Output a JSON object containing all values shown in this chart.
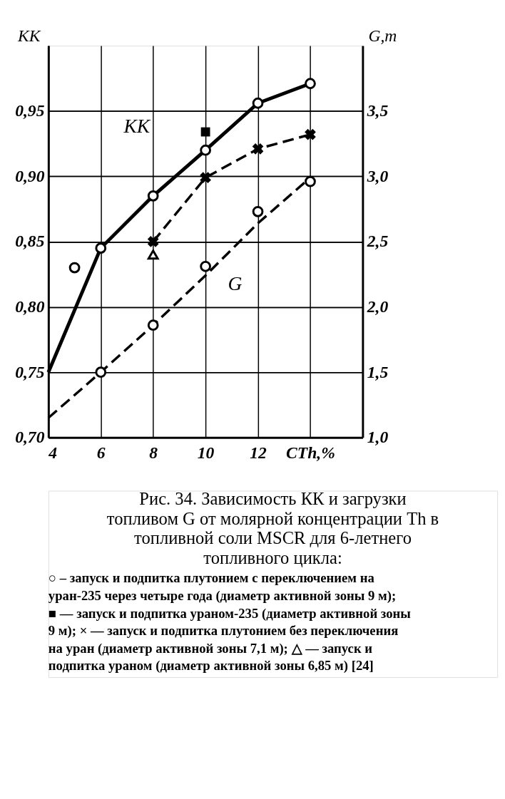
{
  "chart_data": {
    "type": "line",
    "title": "Рис. 34. Зависимость КК и загрузки топливом G от молярной концентрации Th в топливной соли MSCR для 6-летнего топливного цикла:",
    "ylabel": "KK",
    "y2label": "G,т",
    "xlim": [
      4,
      16
    ],
    "xticks": [
      4,
      6,
      8,
      10,
      12,
      {
        "value": 14,
        "label": "CTh,%"
      }
    ],
    "ylim": [
      0.7,
      1.0
    ],
    "yticks": [
      {
        "value": 0.7,
        "label": "0,70"
      },
      {
        "value": 0.75,
        "label": "0,75"
      },
      {
        "value": 0.8,
        "label": "0,80"
      },
      {
        "value": 0.85,
        "label": "0,85"
      },
      {
        "value": 0.9,
        "label": "0,90"
      },
      {
        "value": 0.95,
        "label": "0,95"
      }
    ],
    "y2lim": [
      1.0,
      4.0
    ],
    "y2ticks": [
      {
        "value": 1.0,
        "label": "1,0"
      },
      {
        "value": 1.5,
        "label": "1,5"
      },
      {
        "value": 2.0,
        "label": "2,0"
      },
      {
        "value": 2.5,
        "label": "2,5"
      },
      {
        "value": 3.0,
        "label": "3,0"
      },
      {
        "value": 3.5,
        "label": "3,5"
      }
    ],
    "grid": true,
    "series": [
      {
        "color": "#000000",
        "x": [
          4,
          6,
          8,
          10,
          12,
          14
        ],
        "values": [
          0.75,
          0.845,
          0.885,
          0.92,
          0.956,
          0.971
        ],
        "line_style": "solid",
        "marker": "none"
      },
      {
        "type": "scatter",
        "color": "#000000",
        "x": [
          5,
          6,
          8,
          10,
          12,
          14
        ],
        "values": [
          0.83,
          0.845,
          0.885,
          0.92,
          0.956,
          0.971
        ],
        "marker": "circle"
      },
      {
        "type": "scatter",
        "color": "#000000",
        "x": [
          10
        ],
        "values": [
          0.934
        ],
        "marker": "square"
      },
      {
        "color": "#000000",
        "x": [
          8,
          10,
          12,
          14
        ],
        "values": [
          0.85,
          0.899,
          0.921,
          0.932
        ],
        "line_style": "dashed",
        "marker": "cross"
      },
      {
        "type": "scatter",
        "color": "#000000",
        "x": [
          8
        ],
        "values": [
          0.84
        ],
        "marker": "triangle"
      },
      {
        "color": "#000000",
        "axis": "y2",
        "x": [
          4,
          6,
          8,
          10,
          12,
          14
        ],
        "values": [
          1.15,
          1.5,
          1.86,
          2.24,
          2.64,
          2.99
        ],
        "line_style": "dashed",
        "marker": "none"
      },
      {
        "type": "scatter",
        "color": "#000000",
        "axis": "y2",
        "x": [
          6,
          8,
          10,
          12,
          14
        ],
        "values": [
          1.5,
          1.86,
          2.31,
          2.73,
          2.96
        ],
        "marker": "circle"
      }
    ],
    "annotations": [
      "KK",
      "G",
      "○ – запуск и подпитка плутонием с переключением на уран-235 через четыре года (диаметр активной зоны 9 м); ■ — запуск и подпитка ураном-235 (диаметр активной зоны 9 м); × — запуск и подпитка плутонием без переключения на уран (диаметр активной зоны 7,1 м); △ — запуск и подпитка ураном (диаметр активной зоны 6,85 м) [24]"
    ]
  }
}
